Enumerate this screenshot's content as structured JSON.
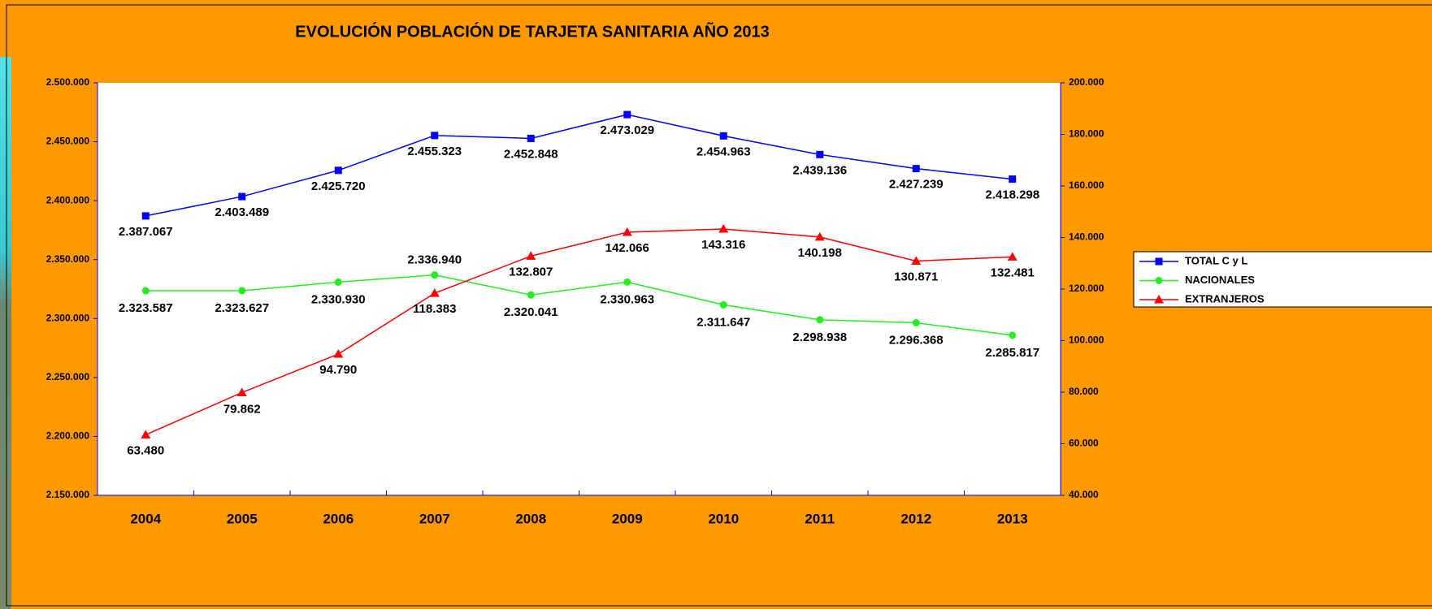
{
  "chart_data": {
    "type": "line",
    "title": "EVOLUCIÓN POBLACIÓN DE TARJETA SANITARIA AÑO 2013",
    "categories": [
      "2004",
      "2005",
      "2006",
      "2007",
      "2008",
      "2009",
      "2010",
      "2011",
      "2012",
      "2013"
    ],
    "ylim": [
      2150000,
      2500000
    ],
    "yticks": [
      {
        "value": 2150000,
        "label": "2.150.000"
      },
      {
        "value": 2200000,
        "label": "2.200.000"
      },
      {
        "value": 2250000,
        "label": "2.250.000"
      },
      {
        "value": 2300000,
        "label": "2.300.000"
      },
      {
        "value": 2350000,
        "label": "2.350.000"
      },
      {
        "value": 2400000,
        "label": "2.400.000"
      },
      {
        "value": 2450000,
        "label": "2.450.000"
      },
      {
        "value": 2500000,
        "label": "2.500.000"
      }
    ],
    "y2lim": [
      40000,
      200000
    ],
    "y2ticks": [
      {
        "value": 40000,
        "label": "40.000"
      },
      {
        "value": 60000,
        "label": "60.000"
      },
      {
        "value": 80000,
        "label": "80.000"
      },
      {
        "value": 100000,
        "label": "100.000"
      },
      {
        "value": 120000,
        "label": "120.000"
      },
      {
        "value": 140000,
        "label": "140.000"
      },
      {
        "value": 160000,
        "label": "160.000"
      },
      {
        "value": 180000,
        "label": "180.000"
      },
      {
        "value": 200000,
        "label": "200.000"
      }
    ],
    "legend": "right",
    "series": [
      {
        "name": "TOTAL C y L",
        "color": "#0000ff",
        "marker": "square",
        "values": [
          2387067,
          2403489,
          2425720,
          2455323,
          2452848,
          2473029,
          2454963,
          2439136,
          2427239,
          2418298
        ],
        "value_labels": [
          "2.387.067",
          "2.403.489",
          "2.425.720",
          "2.455.323",
          "2.452.848",
          "2.473.029",
          "2.454.963",
          "2.439.136",
          "2.427.239",
          "2.418.298"
        ]
      },
      {
        "name": "NACIONALES",
        "color": "#22ee22",
        "marker": "circle",
        "values": [
          2323587,
          2323627,
          2330930,
          2336940,
          2320041,
          2330963,
          2311647,
          2298938,
          2296368,
          2285817
        ],
        "value_labels": [
          "2.323.587",
          "2.323.627",
          "2.330.930",
          "2.336.940",
          "2.320.041",
          "2.330.963",
          "2.311.647",
          "2.298.938",
          "2.296.368",
          "2.285.817"
        ]
      },
      {
        "name": "EXTRANJEROS",
        "color": "#ff0000",
        "marker": "triangle",
        "axis": "y2",
        "values": [
          63480,
          79862,
          94790,
          118383,
          132807,
          142066,
          143316,
          140198,
          130871,
          132481
        ],
        "value_labels": [
          "63.480",
          "79.862",
          "94.790",
          "118.383",
          "132.807",
          "142.066",
          "143.316",
          "140.198",
          "130.871",
          "132.481"
        ]
      }
    ]
  }
}
